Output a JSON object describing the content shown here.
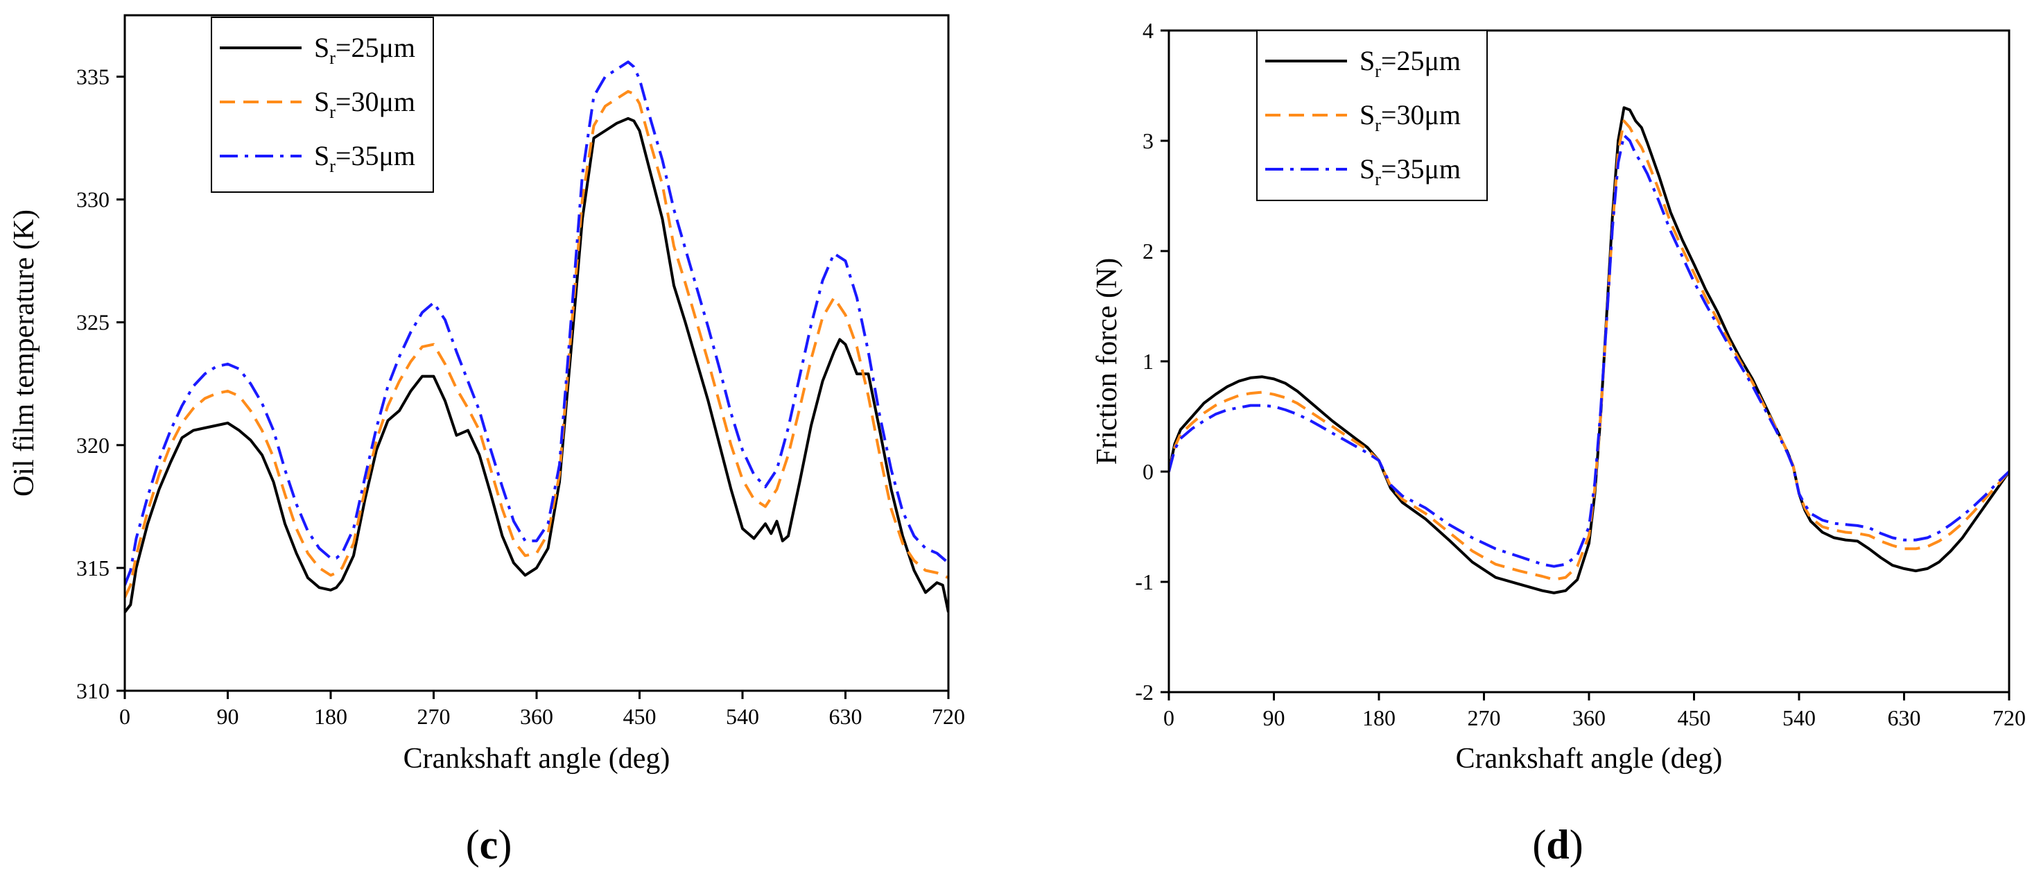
{
  "colors": {
    "s25": "#000000",
    "s30": "#ff8c1a",
    "s35": "#1a1aff"
  },
  "chart_data": [
    {
      "type": "line",
      "panel": "(c)",
      "panel_letter": "c",
      "xlabel": "Crankshaft angle (deg)",
      "ylabel": "Oil film temperature (K)",
      "xlim": [
        0,
        720
      ],
      "ylim": [
        310,
        337.5
      ],
      "xticks": [
        0,
        90,
        180,
        270,
        360,
        450,
        540,
        630,
        720
      ],
      "yticks": [
        310,
        315,
        320,
        325,
        330,
        335
      ],
      "legend_position": "top-left",
      "series": [
        {
          "name": "S_r=25μm",
          "legend_main": "S",
          "legend_sub": "r",
          "legend_tail": "=25μm",
          "color_key": "s25",
          "dash": "solid",
          "x": [
            0,
            5,
            10,
            20,
            30,
            40,
            50,
            60,
            70,
            80,
            90,
            100,
            110,
            120,
            130,
            140,
            150,
            160,
            170,
            180,
            185,
            190,
            200,
            210,
            220,
            230,
            240,
            250,
            260,
            270,
            280,
            290,
            300,
            310,
            320,
            330,
            340,
            350,
            360,
            370,
            380,
            390,
            400,
            410,
            420,
            430,
            440,
            445,
            450,
            460,
            470,
            480,
            490,
            500,
            510,
            520,
            530,
            540,
            550,
            560,
            565,
            570,
            575,
            580,
            590,
            600,
            610,
            620,
            625,
            630,
            640,
            650,
            660,
            670,
            680,
            690,
            700,
            710,
            715,
            720
          ],
          "y": [
            313.2,
            313.5,
            315,
            316.8,
            318.2,
            319.3,
            320.3,
            320.6,
            320.7,
            320.8,
            320.9,
            320.6,
            320.2,
            319.6,
            318.5,
            316.8,
            315.6,
            314.6,
            314.2,
            314.1,
            314.2,
            314.5,
            315.5,
            317.8,
            319.8,
            321,
            321.4,
            322.2,
            322.8,
            322.8,
            321.8,
            320.4,
            320.6,
            319.6,
            318,
            316.3,
            315.2,
            314.7,
            315,
            315.8,
            318.5,
            323.8,
            329.2,
            332.5,
            332.8,
            333.1,
            333.3,
            333.2,
            332.8,
            331,
            329.2,
            326.5,
            325,
            323.4,
            321.8,
            320,
            318.2,
            316.6,
            316.2,
            316.8,
            316.4,
            316.9,
            316.1,
            316.3,
            318.5,
            320.8,
            322.6,
            323.8,
            324.3,
            324.1,
            322.9,
            322.9,
            320.6,
            318.2,
            316.3,
            314.9,
            314,
            314.4,
            314.3,
            313.2
          ]
        },
        {
          "name": "S_r=30μm",
          "legend_main": "S",
          "legend_sub": "r",
          "legend_tail": "=30μm",
          "color_key": "s30",
          "dash": "dash",
          "x": [
            0,
            5,
            10,
            20,
            30,
            40,
            50,
            60,
            70,
            80,
            90,
            100,
            110,
            120,
            130,
            140,
            150,
            160,
            170,
            180,
            185,
            190,
            200,
            210,
            220,
            230,
            240,
            250,
            260,
            270,
            280,
            290,
            300,
            310,
            320,
            330,
            340,
            350,
            360,
            370,
            380,
            390,
            400,
            410,
            420,
            430,
            440,
            445,
            450,
            460,
            470,
            480,
            490,
            500,
            510,
            520,
            530,
            540,
            550,
            560,
            570,
            580,
            590,
            600,
            610,
            620,
            630,
            640,
            650,
            660,
            670,
            680,
            690,
            700,
            710,
            720
          ],
          "y": [
            313.8,
            314.3,
            315.5,
            317.3,
            318.8,
            320,
            320.9,
            321.5,
            321.9,
            322.1,
            322.2,
            322,
            321.4,
            320.6,
            319.5,
            318,
            316.6,
            315.6,
            315,
            314.7,
            314.8,
            315,
            316,
            318.2,
            320.2,
            321.6,
            322.6,
            323.4,
            324,
            324.1,
            323.3,
            322.3,
            321.5,
            320.6,
            319,
            317.4,
            316.1,
            315.5,
            315.6,
            316.4,
            318.8,
            324.5,
            330,
            333,
            333.8,
            334.1,
            334.4,
            334.3,
            333.9,
            332.2,
            330.6,
            328.1,
            326.6,
            325,
            323.4,
            321.7,
            320,
            318.6,
            317.8,
            317.5,
            318.2,
            319.6,
            321.5,
            323.5,
            325.2,
            326,
            325.3,
            324,
            322,
            319.6,
            317.4,
            316,
            315.3,
            314.9,
            314.8,
            314.6
          ]
        },
        {
          "name": "S_r=35μm",
          "legend_main": "S",
          "legend_sub": "r",
          "legend_tail": "=35μm",
          "color_key": "s35",
          "dash": "dashdot",
          "x": [
            0,
            5,
            10,
            20,
            30,
            40,
            50,
            60,
            70,
            80,
            90,
            100,
            110,
            120,
            130,
            140,
            150,
            160,
            170,
            180,
            185,
            190,
            200,
            210,
            220,
            230,
            240,
            250,
            260,
            270,
            280,
            290,
            300,
            310,
            320,
            330,
            340,
            350,
            360,
            370,
            380,
            390,
            400,
            410,
            420,
            430,
            440,
            445,
            450,
            460,
            470,
            480,
            490,
            500,
            510,
            520,
            530,
            540,
            550,
            560,
            570,
            580,
            590,
            600,
            610,
            620,
            630,
            640,
            650,
            660,
            670,
            680,
            690,
            700,
            710,
            720
          ],
          "y": [
            314.3,
            314.9,
            316.2,
            317.9,
            319.4,
            320.6,
            321.6,
            322.4,
            322.9,
            323.2,
            323.3,
            323.1,
            322.5,
            321.7,
            320.6,
            319,
            317.6,
            316.5,
            315.8,
            315.4,
            315.4,
            315.6,
            316.6,
            318.7,
            320.7,
            322.4,
            323.6,
            324.6,
            325.4,
            325.8,
            325.1,
            323.8,
            322.6,
            321.4,
            319.8,
            318.3,
            316.9,
            316.1,
            316.1,
            316.8,
            319.2,
            325,
            331,
            334.2,
            335,
            335.3,
            335.6,
            335.4,
            334.9,
            333.2,
            331.6,
            329.6,
            328,
            326.4,
            324.8,
            323.1,
            321.3,
            319.8,
            318.8,
            318.3,
            319,
            320.7,
            322.8,
            324.9,
            326.7,
            327.8,
            327.5,
            326,
            323.8,
            321.2,
            319,
            317.3,
            316.3,
            315.8,
            315.6,
            315.2
          ]
        }
      ]
    },
    {
      "type": "line",
      "panel": "(d)",
      "panel_letter": "d",
      "xlabel": "Crankshaft angle (deg)",
      "ylabel": "Friction force (N)",
      "xlim": [
        0,
        720
      ],
      "ylim": [
        -2,
        4
      ],
      "xticks": [
        0,
        90,
        180,
        270,
        360,
        450,
        540,
        630,
        720
      ],
      "yticks": [
        -2,
        -1,
        0,
        1,
        2,
        3,
        4
      ],
      "legend_position": "top-left",
      "series": [
        {
          "name": "S_r=25μm",
          "legend_main": "S",
          "legend_sub": "r",
          "legend_tail": "=25μm",
          "color_key": "s25",
          "dash": "solid",
          "x": [
            0,
            5,
            10,
            20,
            30,
            40,
            50,
            60,
            70,
            80,
            90,
            100,
            110,
            120,
            130,
            140,
            150,
            160,
            170,
            180,
            190,
            200,
            220,
            240,
            260,
            280,
            300,
            320,
            330,
            340,
            350,
            360,
            365,
            370,
            375,
            380,
            385,
            390,
            395,
            400,
            405,
            410,
            420,
            430,
            440,
            450,
            460,
            470,
            480,
            490,
            500,
            510,
            520,
            530,
            535,
            540,
            545,
            550,
            560,
            570,
            580,
            590,
            600,
            610,
            620,
            630,
            640,
            650,
            660,
            670,
            680,
            690,
            700,
            710,
            720
          ],
          "y": [
            0,
            0.25,
            0.38,
            0.5,
            0.62,
            0.7,
            0.77,
            0.82,
            0.85,
            0.86,
            0.84,
            0.8,
            0.73,
            0.64,
            0.55,
            0.46,
            0.38,
            0.3,
            0.22,
            0.1,
            -0.15,
            -0.28,
            -0.43,
            -0.62,
            -0.82,
            -0.96,
            -1.02,
            -1.08,
            -1.1,
            -1.08,
            -0.98,
            -0.65,
            -0.2,
            0.5,
            1.4,
            2.3,
            3,
            3.3,
            3.28,
            3.18,
            3.12,
            2.98,
            2.68,
            2.35,
            2.1,
            1.88,
            1.65,
            1.45,
            1.22,
            1.02,
            0.84,
            0.62,
            0.4,
            0.18,
            0.05,
            -0.2,
            -0.35,
            -0.45,
            -0.55,
            -0.6,
            -0.62,
            -0.63,
            -0.7,
            -0.78,
            -0.85,
            -0.88,
            -0.9,
            -0.88,
            -0.82,
            -0.72,
            -0.6,
            -0.45,
            -0.3,
            -0.15,
            0
          ]
        },
        {
          "name": "S_r=30μm",
          "legend_main": "S",
          "legend_sub": "r",
          "legend_tail": "=30μm",
          "color_key": "s30",
          "dash": "dash",
          "x": [
            0,
            5,
            10,
            20,
            30,
            40,
            50,
            60,
            70,
            80,
            90,
            100,
            110,
            120,
            130,
            140,
            150,
            160,
            170,
            180,
            190,
            200,
            220,
            240,
            260,
            280,
            300,
            320,
            330,
            340,
            350,
            360,
            365,
            370,
            375,
            380,
            385,
            390,
            395,
            400,
            405,
            410,
            420,
            430,
            440,
            450,
            460,
            470,
            480,
            490,
            500,
            510,
            520,
            530,
            535,
            540,
            545,
            550,
            560,
            570,
            580,
            590,
            600,
            610,
            620,
            630,
            640,
            650,
            660,
            670,
            680,
            690,
            700,
            710,
            720
          ],
          "y": [
            0,
            0.22,
            0.34,
            0.44,
            0.53,
            0.6,
            0.65,
            0.69,
            0.71,
            0.72,
            0.7,
            0.67,
            0.62,
            0.55,
            0.48,
            0.41,
            0.34,
            0.27,
            0.2,
            0.1,
            -0.13,
            -0.25,
            -0.38,
            -0.55,
            -0.72,
            -0.84,
            -0.9,
            -0.95,
            -0.98,
            -0.96,
            -0.86,
            -0.58,
            -0.15,
            0.5,
            1.35,
            2.2,
            2.9,
            3.18,
            3.12,
            3.02,
            2.94,
            2.82,
            2.55,
            2.26,
            2.02,
            1.8,
            1.58,
            1.38,
            1.18,
            0.99,
            0.81,
            0.6,
            0.4,
            0.18,
            0.05,
            -0.2,
            -0.33,
            -0.42,
            -0.5,
            -0.53,
            -0.55,
            -0.56,
            -0.58,
            -0.63,
            -0.67,
            -0.7,
            -0.7,
            -0.68,
            -0.63,
            -0.56,
            -0.47,
            -0.36,
            -0.24,
            -0.12,
            0
          ]
        },
        {
          "name": "S_r=35μm",
          "legend_main": "S",
          "legend_sub": "r",
          "legend_tail": "=35μm",
          "color_key": "s35",
          "dash": "dashdot",
          "x": [
            0,
            5,
            10,
            20,
            30,
            40,
            50,
            60,
            70,
            80,
            90,
            100,
            110,
            120,
            130,
            140,
            150,
            160,
            170,
            180,
            190,
            200,
            220,
            240,
            260,
            280,
            300,
            320,
            330,
            340,
            350,
            360,
            365,
            370,
            375,
            380,
            385,
            390,
            395,
            400,
            405,
            410,
            420,
            430,
            440,
            450,
            460,
            470,
            480,
            490,
            500,
            510,
            520,
            530,
            535,
            540,
            545,
            550,
            560,
            570,
            580,
            590,
            600,
            610,
            620,
            630,
            640,
            650,
            660,
            670,
            680,
            690,
            700,
            710,
            720
          ],
          "y": [
            0,
            0.2,
            0.3,
            0.39,
            0.46,
            0.52,
            0.56,
            0.58,
            0.6,
            0.6,
            0.59,
            0.56,
            0.52,
            0.47,
            0.41,
            0.35,
            0.29,
            0.23,
            0.17,
            0.1,
            -0.12,
            -0.22,
            -0.33,
            -0.48,
            -0.6,
            -0.7,
            -0.77,
            -0.84,
            -0.86,
            -0.84,
            -0.76,
            -0.5,
            -0.1,
            0.55,
            1.35,
            2.2,
            2.8,
            3.05,
            3,
            2.88,
            2.8,
            2.7,
            2.45,
            2.18,
            1.95,
            1.72,
            1.52,
            1.33,
            1.14,
            0.96,
            0.78,
            0.58,
            0.38,
            0.17,
            0.04,
            -0.2,
            -0.3,
            -0.38,
            -0.44,
            -0.47,
            -0.48,
            -0.49,
            -0.51,
            -0.56,
            -0.6,
            -0.62,
            -0.62,
            -0.6,
            -0.55,
            -0.48,
            -0.4,
            -0.31,
            -0.21,
            -0.1,
            0
          ]
        }
      ]
    }
  ]
}
